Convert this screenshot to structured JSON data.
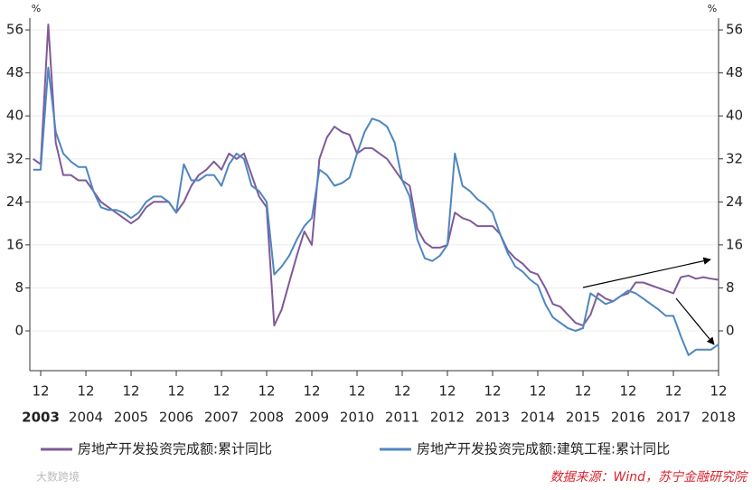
{
  "chart_data": {
    "type": "line",
    "y_unit": "%",
    "y2_unit": "%",
    "categories": [
      null,
      "12",
      null,
      null,
      null,
      null,
      null,
      "12",
      null,
      null,
      null,
      null,
      null,
      "12",
      null,
      null,
      null,
      null,
      null,
      "12",
      null,
      null,
      null,
      null,
      null,
      "12",
      null,
      null,
      null,
      null,
      null,
      "12",
      null,
      null,
      null,
      null,
      null,
      "12",
      null,
      null,
      null,
      null,
      null,
      "12",
      null,
      null,
      null,
      null,
      null,
      "12",
      null,
      null,
      null,
      null,
      null,
      "12",
      null,
      null,
      null,
      null,
      null,
      "12",
      null,
      null,
      null,
      null,
      null,
      "12",
      null,
      null,
      null,
      null,
      null,
      "12",
      null,
      null,
      null,
      null,
      null,
      "12",
      null,
      null,
      null,
      null,
      null,
      "12",
      null,
      null,
      null,
      null,
      null,
      "12"
    ],
    "year_labels": [
      "2003",
      "2004",
      "2005",
      "2006",
      "2007",
      "2008",
      "2009",
      "2010",
      "2011",
      "2012",
      "2013",
      "2014",
      "2015",
      "2016",
      "2017",
      "2018"
    ],
    "series": [
      {
        "name": "房地产开发投资完成额:累计同比",
        "color": "#7f5a9a",
        "values": [
          32,
          31,
          57,
          35,
          29,
          29,
          28,
          28,
          26,
          24,
          23,
          22,
          21,
          20,
          21,
          23,
          24,
          24,
          24,
          22,
          24,
          27,
          29,
          30,
          31.5,
          30,
          33,
          32,
          33,
          29,
          25,
          23,
          1,
          4,
          9,
          14,
          18.5,
          16,
          32,
          36,
          38,
          37,
          36.5,
          33,
          34,
          34,
          33,
          32,
          30,
          28,
          27,
          19,
          16.5,
          15.5,
          15.5,
          16,
          22,
          21,
          20.5,
          19.5,
          19.5,
          19.5,
          18,
          15,
          13.5,
          12.5,
          11,
          10.5,
          8,
          5,
          4.5,
          3,
          1.5,
          1,
          3,
          7,
          6,
          5.5,
          6.5,
          7,
          9,
          9,
          8.5,
          8,
          7.5,
          7,
          10,
          10.3,
          9.7,
          10,
          9.7,
          9.5
        ]
      },
      {
        "name": "房地产开发投资完成额:建筑工程:累计同比",
        "color": "#4f86c0",
        "values": [
          30,
          30,
          49,
          37,
          33,
          31.5,
          30.5,
          30.5,
          26,
          23,
          22.5,
          22.5,
          22,
          21,
          22,
          24,
          25,
          25,
          24,
          22,
          31,
          28,
          28,
          29,
          29,
          27,
          31,
          33,
          32,
          27,
          26,
          24,
          10.5,
          12,
          14,
          17,
          19.5,
          21,
          30,
          29,
          27,
          27.5,
          28.5,
          33,
          37,
          39.5,
          39,
          38,
          35,
          28,
          25,
          17,
          13.5,
          13,
          14,
          16,
          33,
          27,
          26,
          24.5,
          23.5,
          22,
          18,
          14.5,
          12,
          11,
          9.5,
          8.5,
          5,
          2.5,
          1.5,
          0.5,
          0,
          0.5,
          7,
          6,
          5,
          5.5,
          6.5,
          7.5,
          7,
          6,
          5,
          4,
          2.8,
          2.8,
          -1,
          -4.5,
          -3.5,
          -3.5,
          -3.5,
          -2.5
        ]
      }
    ],
    "ylim": [
      -7.4,
      58.2
    ],
    "yticks": [
      0,
      8,
      16,
      24,
      32,
      40,
      48,
      56
    ],
    "y2lim": [
      -7.4,
      58.2
    ],
    "y2ticks": [
      0,
      8,
      16,
      24,
      32,
      40,
      48,
      56
    ],
    "grid": true,
    "source": "数据来源：Wind，苏宁金融研究院",
    "watermark": "大数跨境"
  }
}
